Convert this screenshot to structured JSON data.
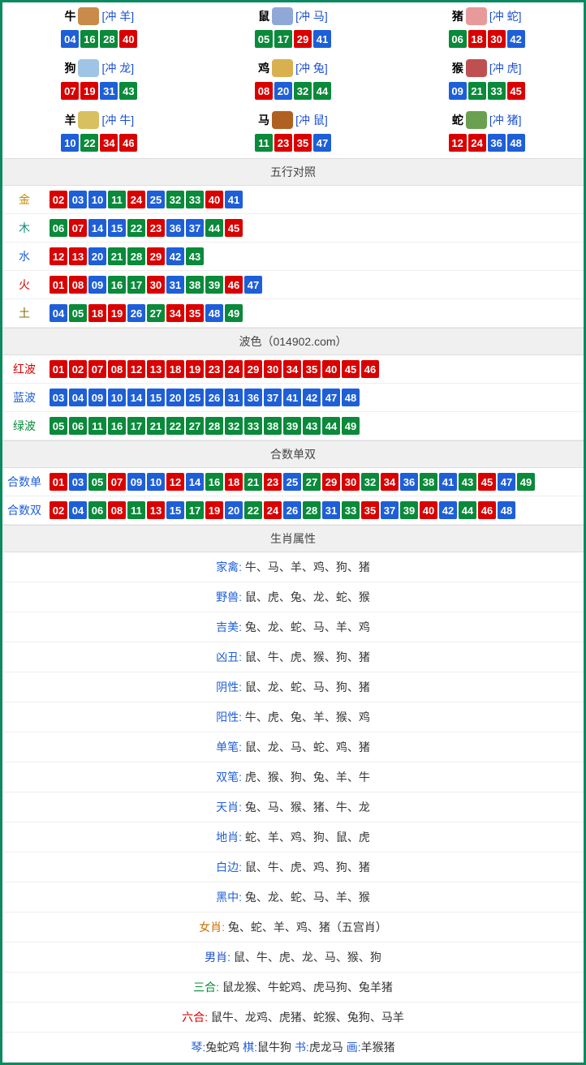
{
  "number_colors": {
    "red": [
      "01",
      "02",
      "07",
      "08",
      "12",
      "13",
      "18",
      "19",
      "23",
      "24",
      "29",
      "30",
      "34",
      "35",
      "40",
      "45",
      "46"
    ],
    "blue": [
      "03",
      "04",
      "09",
      "10",
      "14",
      "15",
      "20",
      "25",
      "26",
      "31",
      "36",
      "37",
      "41",
      "42",
      "47",
      "48"
    ],
    "green": [
      "05",
      "06",
      "11",
      "16",
      "17",
      "21",
      "22",
      "27",
      "28",
      "32",
      "33",
      "38",
      "39",
      "43",
      "44",
      "49"
    ]
  },
  "zodiac_icon_colors": [
    "#c98b4a",
    "#8fa8d8",
    "#e89a9a",
    "#a0c4e6",
    "#d8b050",
    "#c05050",
    "#d8c060",
    "#b06020",
    "#6aa050"
  ],
  "zodiac": [
    {
      "name": "牛",
      "clash": "[冲 羊]",
      "nums": [
        "04",
        "16",
        "28",
        "40"
      ]
    },
    {
      "name": "鼠",
      "clash": "[冲 马]",
      "nums": [
        "05",
        "17",
        "29",
        "41"
      ]
    },
    {
      "name": "猪",
      "clash": "[冲 蛇]",
      "nums": [
        "06",
        "18",
        "30",
        "42"
      ]
    },
    {
      "name": "狗",
      "clash": "[冲 龙]",
      "nums": [
        "07",
        "19",
        "31",
        "43"
      ]
    },
    {
      "name": "鸡",
      "clash": "[冲 兔]",
      "nums": [
        "08",
        "20",
        "32",
        "44"
      ]
    },
    {
      "name": "猴",
      "clash": "[冲 虎]",
      "nums": [
        "09",
        "21",
        "33",
        "45"
      ]
    },
    {
      "name": "羊",
      "clash": "[冲 牛]",
      "nums": [
        "10",
        "22",
        "34",
        "46"
      ]
    },
    {
      "name": "马",
      "clash": "[冲 鼠]",
      "nums": [
        "11",
        "23",
        "35",
        "47"
      ]
    },
    {
      "name": "蛇",
      "clash": "[冲 猪]",
      "nums": [
        "12",
        "24",
        "36",
        "48"
      ]
    }
  ],
  "wuxing_header": "五行对照",
  "wuxing": [
    {
      "label": "金",
      "cls": "lbl-gold",
      "nums": [
        "02",
        "03",
        "10",
        "11",
        "24",
        "25",
        "32",
        "33",
        "40",
        "41"
      ]
    },
    {
      "label": "木",
      "cls": "lbl-teal",
      "nums": [
        "06",
        "07",
        "14",
        "15",
        "22",
        "23",
        "36",
        "37",
        "44",
        "45"
      ]
    },
    {
      "label": "水",
      "cls": "lbl-blue2",
      "nums": [
        "12",
        "13",
        "20",
        "21",
        "28",
        "29",
        "42",
        "43"
      ]
    },
    {
      "label": "火",
      "cls": "lbl-red2",
      "nums": [
        "01",
        "08",
        "09",
        "16",
        "17",
        "30",
        "31",
        "38",
        "39",
        "46",
        "47"
      ]
    },
    {
      "label": "土",
      "cls": "lbl-brown",
      "nums": [
        "04",
        "05",
        "18",
        "19",
        "26",
        "27",
        "34",
        "35",
        "48",
        "49"
      ]
    }
  ],
  "bose_header": "波色（014902.com）",
  "bose": [
    {
      "label": "红波",
      "cls": "lbl-red2",
      "nums": [
        "01",
        "02",
        "07",
        "08",
        "12",
        "13",
        "18",
        "19",
        "23",
        "24",
        "29",
        "30",
        "34",
        "35",
        "40",
        "45",
        "46"
      ]
    },
    {
      "label": "蓝波",
      "cls": "lbl-blue2",
      "nums": [
        "03",
        "04",
        "09",
        "10",
        "14",
        "15",
        "20",
        "25",
        "26",
        "31",
        "36",
        "37",
        "41",
        "42",
        "47",
        "48"
      ]
    },
    {
      "label": "绿波",
      "cls": "lbl-green2",
      "nums": [
        "05",
        "06",
        "11",
        "16",
        "17",
        "21",
        "22",
        "27",
        "28",
        "32",
        "33",
        "38",
        "39",
        "43",
        "44",
        "49"
      ]
    }
  ],
  "heshu_header": "合数单双",
  "heshu": [
    {
      "label": "合数单",
      "cls": "lbl-blue2",
      "nums": [
        "01",
        "03",
        "05",
        "07",
        "09",
        "10",
        "12",
        "14",
        "16",
        "18",
        "21",
        "23",
        "25",
        "27",
        "29",
        "30",
        "32",
        "34",
        "36",
        "38",
        "41",
        "43",
        "45",
        "47",
        "49"
      ]
    },
    {
      "label": "合数双",
      "cls": "lbl-blue2",
      "nums": [
        "02",
        "04",
        "06",
        "08",
        "11",
        "13",
        "15",
        "17",
        "19",
        "20",
        "22",
        "24",
        "26",
        "28",
        "31",
        "33",
        "35",
        "37",
        "39",
        "40",
        "42",
        "44",
        "46",
        "48"
      ]
    }
  ],
  "attrs_header": "生肖属性",
  "attrs": [
    {
      "label": "家禽:",
      "cls": "attr-label",
      "val": "牛、马、羊、鸡、狗、猪"
    },
    {
      "label": "野兽:",
      "cls": "attr-label",
      "val": "鼠、虎、兔、龙、蛇、猴"
    },
    {
      "label": "吉美:",
      "cls": "attr-label",
      "val": "兔、龙、蛇、马、羊、鸡"
    },
    {
      "label": "凶丑:",
      "cls": "attr-label",
      "val": "鼠、牛、虎、猴、狗、猪"
    },
    {
      "label": "阴性:",
      "cls": "attr-label",
      "val": "鼠、龙、蛇、马、狗、猪"
    },
    {
      "label": "阳性:",
      "cls": "attr-label",
      "val": "牛、虎、兔、羊、猴、鸡"
    },
    {
      "label": "单笔:",
      "cls": "attr-label",
      "val": "鼠、龙、马、蛇、鸡、猪"
    },
    {
      "label": "双笔:",
      "cls": "attr-label",
      "val": "虎、猴、狗、兔、羊、牛"
    },
    {
      "label": "天肖:",
      "cls": "attr-label",
      "val": "兔、马、猴、猪、牛、龙"
    },
    {
      "label": "地肖:",
      "cls": "attr-label",
      "val": "蛇、羊、鸡、狗、鼠、虎"
    },
    {
      "label": "白边:",
      "cls": "attr-label",
      "val": "鼠、牛、虎、鸡、狗、猪"
    },
    {
      "label": "黑中:",
      "cls": "attr-label",
      "val": "兔、龙、蛇、马、羊、猴"
    },
    {
      "label": "女肖:",
      "cls": "orange",
      "val": "兔、蛇、羊、鸡、猪（五宫肖）"
    },
    {
      "label": "男肖:",
      "cls": "deepblue",
      "val": "鼠、牛、虎、龙、马、猴、狗"
    },
    {
      "label": "三合:",
      "cls": "greent",
      "val": "鼠龙猴、牛蛇鸡、虎马狗、兔羊猪"
    },
    {
      "label": "六合:",
      "cls": "redt",
      "val": "鼠牛、龙鸡、虎猪、蛇猴、兔狗、马羊"
    }
  ],
  "footer_groups": [
    {
      "k": "琴:",
      "v": "兔蛇鸡"
    },
    {
      "k": "棋:",
      "v": "鼠牛狗"
    },
    {
      "k": "书:",
      "v": "虎龙马"
    },
    {
      "k": "画:",
      "v": "羊猴猪"
    }
  ]
}
